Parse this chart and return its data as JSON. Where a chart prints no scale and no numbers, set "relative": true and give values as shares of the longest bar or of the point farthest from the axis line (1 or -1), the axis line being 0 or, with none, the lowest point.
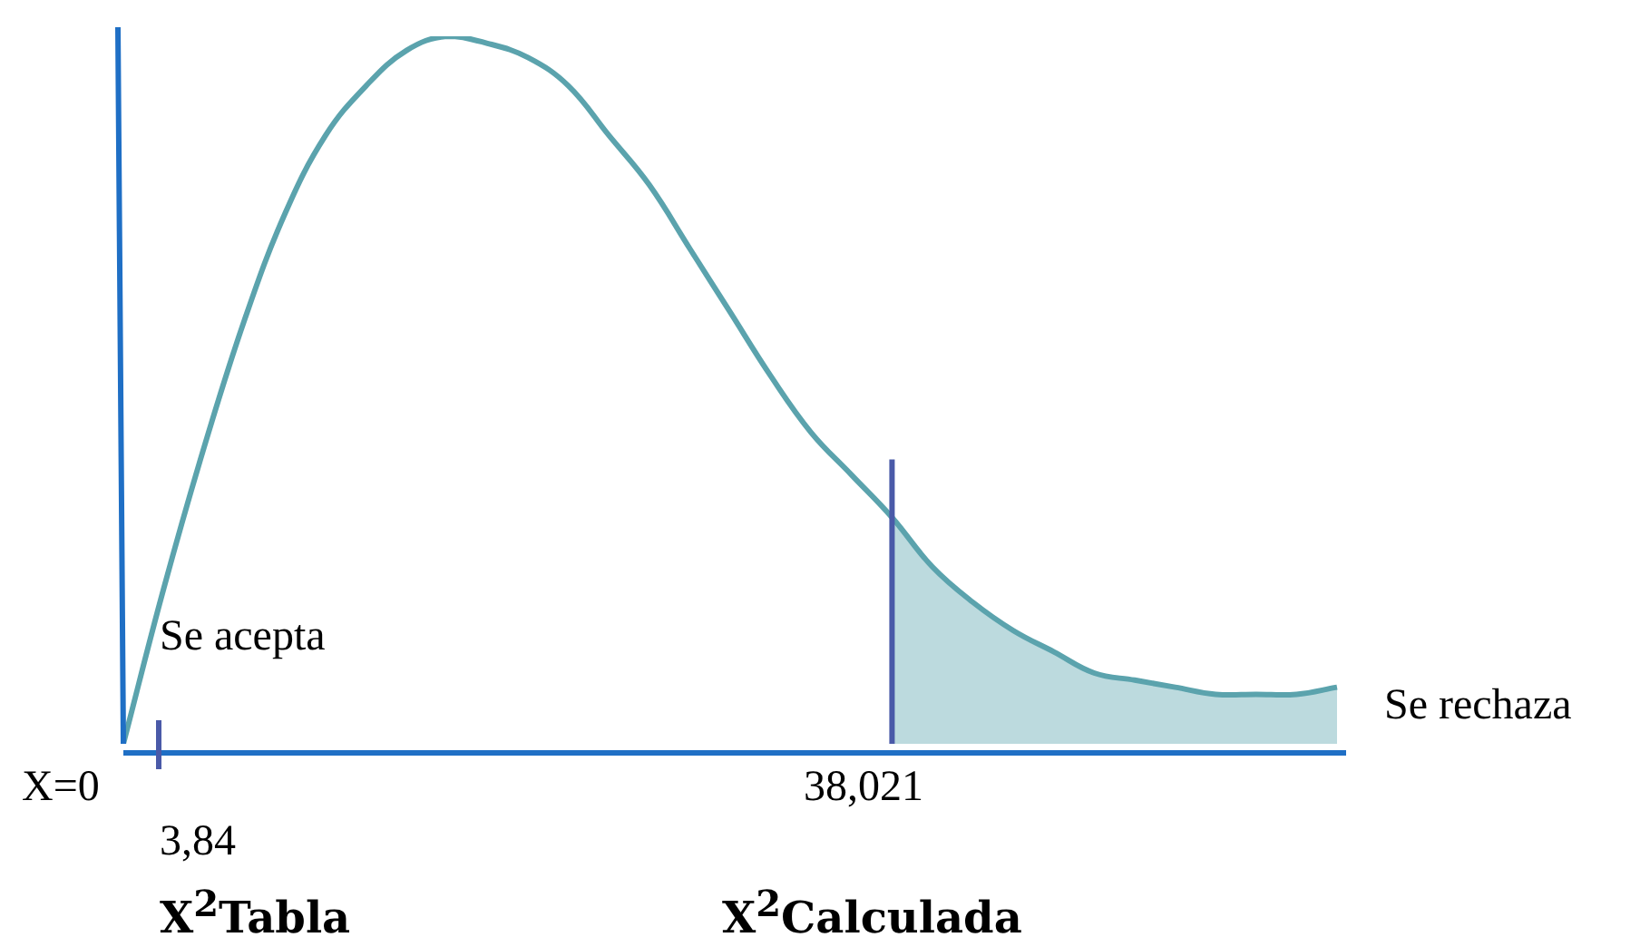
{
  "chart_data": {
    "type": "line",
    "relative": true,
    "categories": [
      null,
      null,
      null,
      null,
      null,
      null,
      null,
      null,
      null,
      null,
      null,
      null,
      null,
      null,
      null,
      null,
      null,
      null,
      null,
      null,
      null,
      null,
      null,
      null,
      null,
      null,
      null,
      null,
      null,
      null,
      null
    ],
    "series": [
      {
        "color": "#5ba3ad",
        "values": [
          0,
          0.22,
          0.42,
          0.6,
          0.75,
          0.86,
          0.93,
          0.98,
          1,
          0.99,
          0.97,
          0.93,
          0.86,
          0.79,
          0.7,
          0.61,
          0.52,
          0.44,
          0.38,
          0.32,
          0.25,
          0.2,
          0.16,
          0.13,
          0.1,
          0.09,
          0.08,
          0.07,
          0.07,
          0.07,
          0.08
        ]
      },
      {
        "type": "area",
        "color": "#bcdade",
        "values": [
          null,
          null,
          null,
          null,
          null,
          null,
          null,
          null,
          null,
          null,
          null,
          null,
          null,
          null,
          null,
          null,
          null,
          null,
          null,
          0.32,
          0.25,
          0.2,
          0.16,
          0.13,
          0.1,
          0.09,
          0.08,
          0.07,
          0.07,
          0.07,
          0.08
        ]
      }
    ],
    "annotations": [
      "X=0",
      "3,84",
      "38,021",
      "Se acepta",
      "Se rechaza",
      "X$^{2}$Tabla",
      "X$^{2}$Calculada"
    ]
  }
}
